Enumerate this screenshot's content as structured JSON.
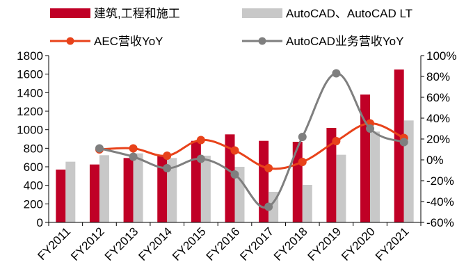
{
  "chart_data": {
    "type": "bar",
    "categories": [
      "FY2011",
      "FY2012",
      "FY2013",
      "FY2014",
      "FY2015",
      "FY2016",
      "FY2017",
      "FY2018",
      "FY2019",
      "FY2020",
      "FY2021"
    ],
    "bar_series": [
      {
        "name": "建筑,工程和施工",
        "color": "#c00026",
        "values": [
          570,
          625,
          695,
          725,
          880,
          950,
          880,
          870,
          1020,
          1380,
          1650
        ]
      },
      {
        "name": "AutoCAD、AutoCAD LT",
        "color": "#c8c8c8",
        "values": [
          655,
          725,
          745,
          695,
          720,
          600,
          330,
          405,
          730,
          980,
          1100
        ]
      }
    ],
    "line_series": [
      {
        "name": "AEC营收YoY",
        "color": "#e8421a",
        "marker": "circle",
        "values": [
          null,
          0.1,
          0.11,
          0.04,
          0.19,
          0.09,
          -0.08,
          -0.02,
          0.18,
          0.35,
          0.21
        ]
      },
      {
        "name": "AutoCAD业务营收YoY",
        "color": "#7f7f7f",
        "marker": "circle",
        "values": [
          null,
          0.11,
          0.03,
          -0.08,
          0.01,
          -0.14,
          -0.45,
          0.22,
          0.83,
          0.3,
          0.17
        ]
      }
    ],
    "y_left": {
      "min": 0,
      "max": 1800,
      "step": 200
    },
    "y_right": {
      "min": -0.6,
      "max": 1.0,
      "step": 0.2
    },
    "y_left_ticks": [
      "0",
      "200",
      "400",
      "600",
      "800",
      "1000",
      "1200",
      "1400",
      "1600",
      "1800"
    ],
    "y_right_ticks": [
      "-60%",
      "-40%",
      "-20%",
      "0%",
      "20%",
      "40%",
      "60%",
      "80%",
      "100%"
    ],
    "legend": {
      "position": "top",
      "rows": 2
    },
    "grid": false
  }
}
